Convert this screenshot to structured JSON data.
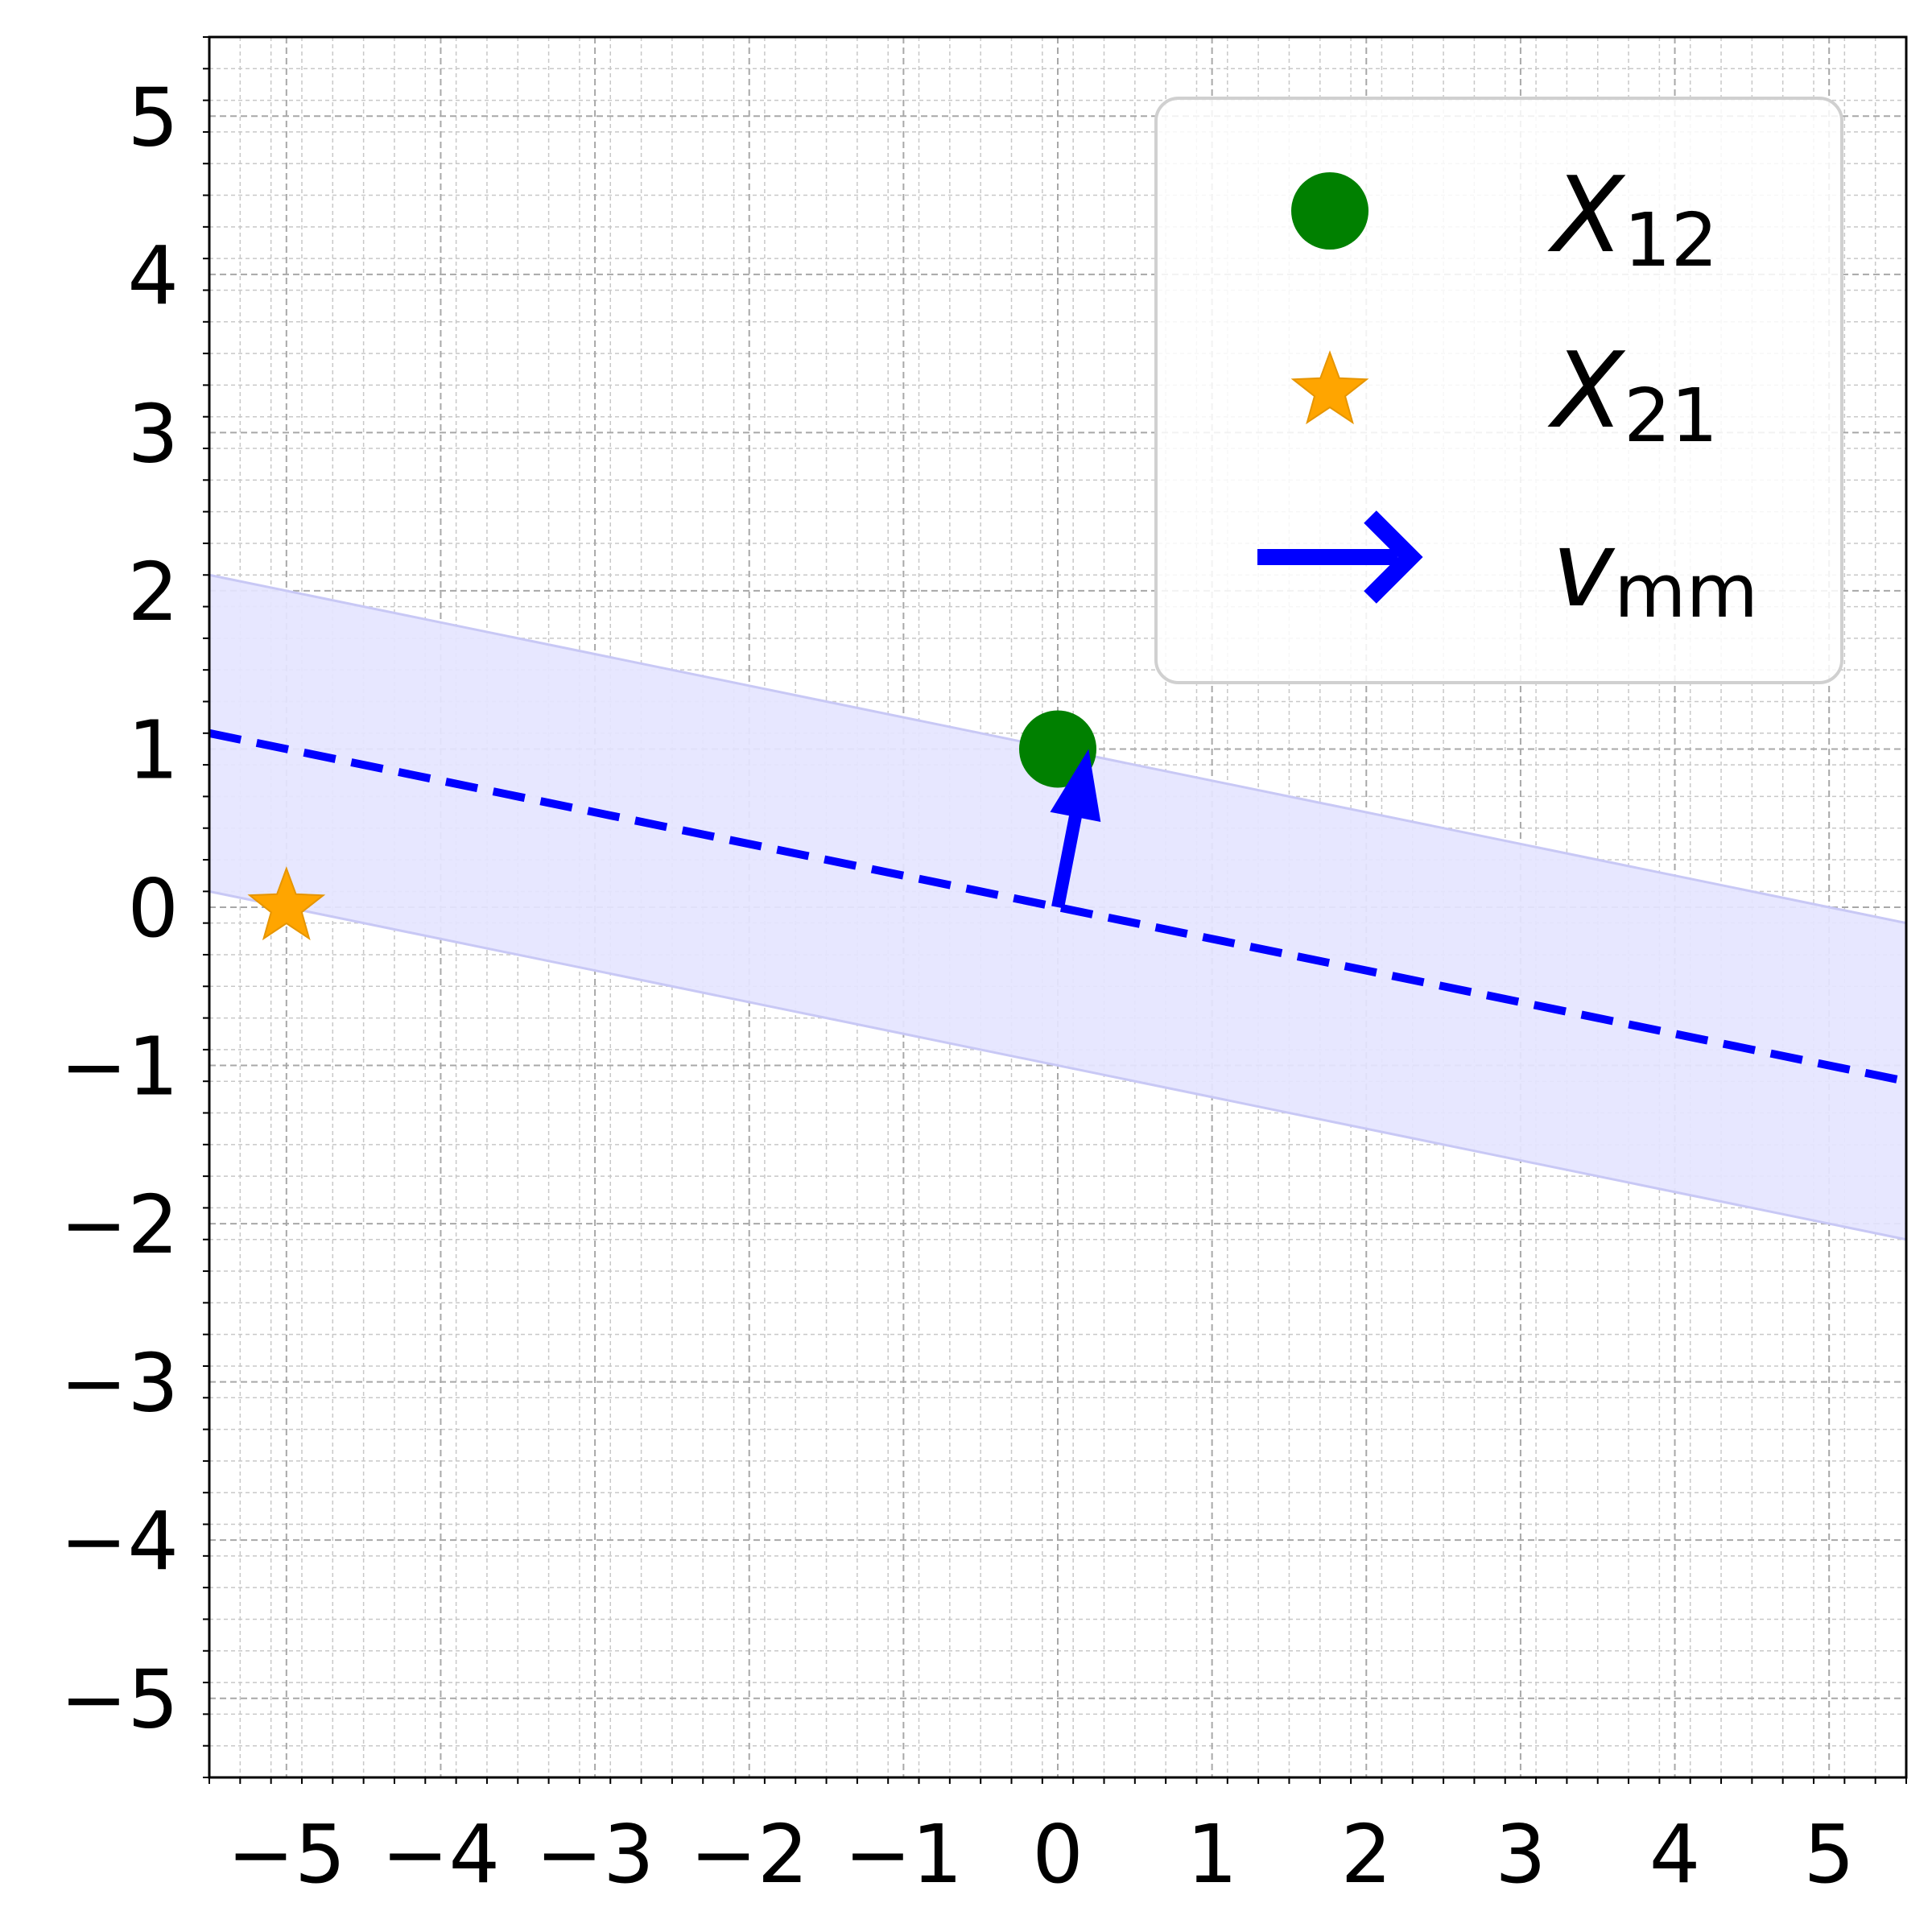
{
  "chart_data": {
    "type": "scatter",
    "title": "",
    "xlabel": "",
    "ylabel": "",
    "xlim": [
      -5.5,
      5.5
    ],
    "ylim": [
      -5.5,
      5.5
    ],
    "xticks": [
      -5,
      -4,
      -3,
      -2,
      -1,
      0,
      1,
      2,
      3,
      4,
      5
    ],
    "yticks": [
      -5,
      -4,
      -3,
      -2,
      -1,
      0,
      1,
      2,
      3,
      4,
      5
    ],
    "x_tick_labels": [
      "−5",
      "−4",
      "−3",
      "−2",
      "−1",
      "0",
      "1",
      "2",
      "3",
      "4",
      "5"
    ],
    "y_tick_labels": [
      "−5",
      "−4",
      "−3",
      "−2",
      "−1",
      "0",
      "1",
      "2",
      "3",
      "4",
      "5"
    ],
    "minor_step": 0.2,
    "grid": true,
    "grid_style": "dashed, major and minor",
    "legend_position": "top-right",
    "points": [
      {
        "series": "X12",
        "x": 0,
        "y": 1,
        "marker": "circle",
        "color": "#008000"
      },
      {
        "series": "X21",
        "x": -5,
        "y": 0,
        "marker": "star",
        "color": "#FFA500"
      }
    ],
    "arrow": {
      "series": "v_mm",
      "x0": 0,
      "y0": 0,
      "dx": 0.2,
      "dy": 1.0,
      "color": "#0000FF"
    },
    "decision_line": {
      "slope": -0.2,
      "intercept": 0,
      "style": "dashed",
      "color": "#0000FF"
    },
    "margin_band": {
      "slope": -0.2,
      "upper_intercept": 1.0,
      "lower_intercept": -1.0,
      "color": "#E5E5FF",
      "edge_color": "#C8C8F5"
    },
    "legend": [
      {
        "key": "X12",
        "symbol": "X",
        "subscript": "12",
        "marker": "circle",
        "color": "#008000"
      },
      {
        "key": "X21",
        "symbol": "X",
        "subscript": "21",
        "marker": "star",
        "color": "#FFA500"
      },
      {
        "key": "v_mm",
        "symbol": "v",
        "subscript": "mm",
        "marker": "arrow",
        "color": "#0000FF"
      }
    ]
  }
}
